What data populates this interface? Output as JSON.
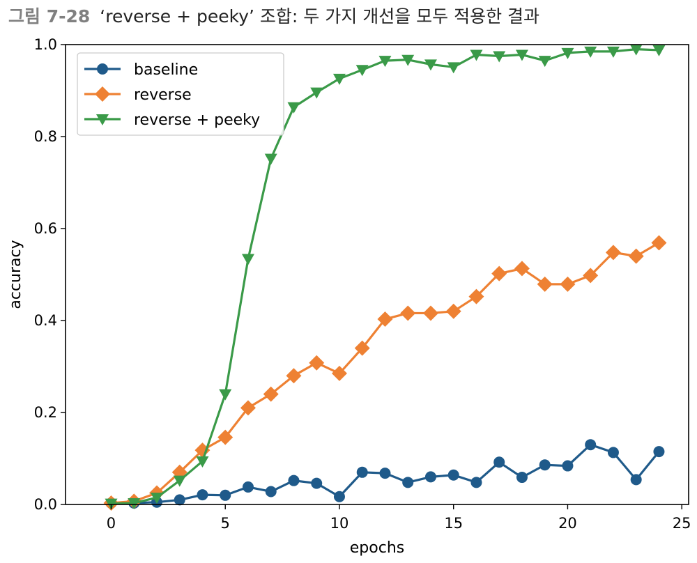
{
  "figure": {
    "number": "그림 7-28",
    "caption": "‘reverse + peeky’ 조합: 두 가지 개선을 모두 적용한 결과"
  },
  "chart_data": {
    "type": "line",
    "xlabel": "epochs",
    "ylabel": "accuracy",
    "xlim": [
      -2,
      25.3
    ],
    "ylim": [
      0,
      1.0
    ],
    "xticks": [
      0,
      5,
      10,
      15,
      20,
      25
    ],
    "yticks": [
      0.0,
      0.2,
      0.4,
      0.6,
      0.8,
      1.0
    ],
    "grid": false,
    "legend_position": "top-left",
    "x": [
      0,
      1,
      2,
      3,
      4,
      5,
      6,
      7,
      8,
      9,
      10,
      11,
      12,
      13,
      14,
      15,
      16,
      17,
      18,
      19,
      20,
      21,
      22,
      23,
      24
    ],
    "series": [
      {
        "name": "baseline",
        "color": "#1f5a8a",
        "marker": "circle",
        "values": [
          0.003,
          0.003,
          0.005,
          0.01,
          0.021,
          0.02,
          0.038,
          0.028,
          0.052,
          0.046,
          0.017,
          0.07,
          0.068,
          0.048,
          0.06,
          0.064,
          0.048,
          0.092,
          0.059,
          0.086,
          0.084,
          0.13,
          0.113,
          0.054,
          0.115
        ]
      },
      {
        "name": "reverse",
        "color": "#ee8133",
        "marker": "diamond",
        "values": [
          0.003,
          0.007,
          0.025,
          0.07,
          0.118,
          0.146,
          0.21,
          0.24,
          0.28,
          0.308,
          0.285,
          0.34,
          0.403,
          0.416,
          0.416,
          0.42,
          0.452,
          0.502,
          0.513,
          0.479,
          0.479,
          0.498,
          0.548,
          0.54,
          0.569
        ]
      },
      {
        "name": "reverse + peeky",
        "color": "#3a9a48",
        "marker": "triangle-down",
        "values": [
          0.002,
          0.003,
          0.015,
          0.052,
          0.094,
          0.24,
          0.534,
          0.752,
          0.864,
          0.896,
          0.926,
          0.945,
          0.965,
          0.967,
          0.957,
          0.951,
          0.978,
          0.975,
          0.978,
          0.965,
          0.982,
          0.985,
          0.985,
          0.99,
          0.988
        ]
      }
    ]
  }
}
